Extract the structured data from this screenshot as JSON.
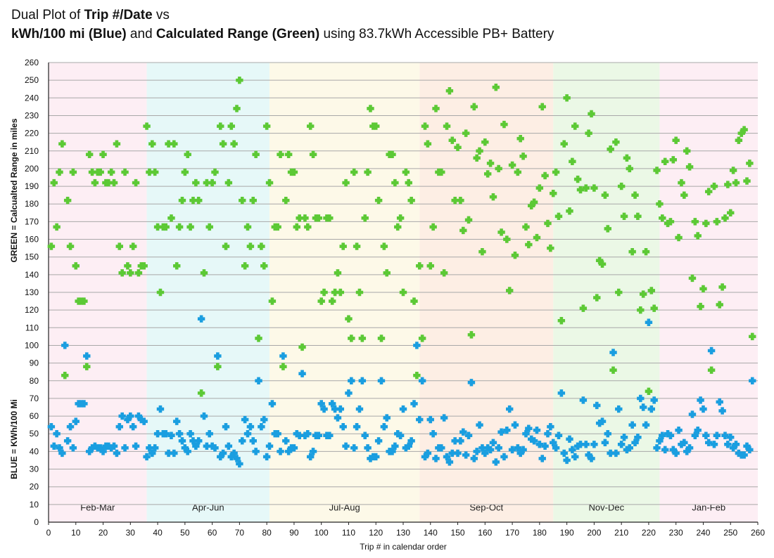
{
  "title": {
    "line1": [
      {
        "text": "Dual Plot of ",
        "bold": false
      },
      {
        "text": "Trip #/Date",
        "bold": true
      },
      {
        "text": " vs",
        "bold": false
      }
    ],
    "line2": [
      {
        "text": "kWh/100 mi (Blue)",
        "bold": true
      },
      {
        "text": " and ",
        "bold": false
      },
      {
        "text": "Calculated Range (Green)",
        "bold": true
      },
      {
        "text": " using 83.7kWh Accessible PB+ Battery",
        "bold": false
      }
    ]
  },
  "chart_data": {
    "type": "scatter",
    "xlabel": "Trip # in calendar order",
    "ylabel_green": "GREEN = Calcualted Range in miles",
    "ylabel_blue": "BLUE = KWh/100 Mi",
    "xlim": [
      0,
      260
    ],
    "ylim": [
      0,
      260
    ],
    "xticks": [
      0,
      10,
      20,
      30,
      40,
      50,
      60,
      70,
      80,
      90,
      100,
      110,
      120,
      130,
      140,
      150,
      160,
      170,
      180,
      190,
      200,
      210,
      220,
      230,
      240,
      250,
      260
    ],
    "yticks": [
      0,
      10,
      20,
      30,
      40,
      50,
      60,
      70,
      80,
      90,
      100,
      110,
      120,
      130,
      140,
      150,
      160,
      170,
      180,
      190,
      200,
      210,
      220,
      230,
      240,
      250,
      260
    ],
    "grid": "horizontal",
    "marker": "plus",
    "colors": {
      "green": "#5cc935",
      "blue": "#1a9ee0"
    },
    "bands": [
      {
        "label": "Feb-Mar",
        "start": 0,
        "end": 36,
        "color": "#fdeef4"
      },
      {
        "label": "Apr-Jun",
        "start": 36,
        "end": 81,
        "color": "#e6f8f8"
      },
      {
        "label": "Jul-Aug",
        "start": 81,
        "end": 136,
        "color": "#fdf9e8"
      },
      {
        "label": "Sep-Oct",
        "start": 136,
        "end": 185,
        "color": "#fdeee4"
      },
      {
        "label": "Nov-Dec",
        "start": 185,
        "end": 224,
        "color": "#ebf8e6"
      },
      {
        "label": "Jan-Feb",
        "start": 224,
        "end": 260,
        "color": "#fdeef4"
      }
    ],
    "series": [
      {
        "key": "green",
        "x": [
          1,
          2,
          3,
          4,
          5,
          6,
          7,
          8,
          9,
          10,
          11,
          12,
          13,
          14,
          15,
          16,
          17,
          18,
          19,
          20,
          21,
          22,
          23,
          24,
          25,
          26,
          27,
          28,
          29,
          30,
          31,
          32,
          33,
          34,
          35,
          36,
          37,
          38,
          39,
          40,
          41,
          42,
          43,
          44,
          45,
          46,
          47,
          48,
          49,
          50,
          51,
          52,
          53,
          54,
          55,
          56,
          57,
          58,
          59,
          60,
          61,
          62,
          63,
          64,
          65,
          66,
          67,
          68,
          69,
          70,
          71,
          72,
          73,
          74,
          75,
          76,
          77,
          78,
          79,
          80,
          81,
          82,
          83,
          84,
          85,
          86,
          87,
          88,
          89,
          90,
          91,
          92,
          93,
          94,
          95,
          96,
          97,
          98,
          99,
          100,
          101,
          102,
          103,
          104,
          105,
          106,
          107,
          108,
          109,
          110,
          111,
          112,
          113,
          114,
          115,
          116,
          117,
          118,
          119,
          120,
          121,
          122,
          123,
          124,
          125,
          126,
          127,
          128,
          129,
          130,
          131,
          132,
          133,
          134,
          135,
          136,
          137,
          138,
          139,
          140,
          141,
          142,
          143,
          144,
          145,
          146,
          147,
          148,
          149,
          150,
          151,
          152,
          153,
          154,
          155,
          156,
          157,
          158,
          159,
          160,
          161,
          162,
          163,
          164,
          165,
          166,
          167,
          168,
          169,
          170,
          171,
          172,
          173,
          174,
          175,
          176,
          177,
          178,
          179,
          180,
          181,
          182,
          183,
          184,
          185,
          186,
          187,
          188,
          189,
          190,
          191,
          192,
          193,
          194,
          195,
          196,
          197,
          198,
          199,
          200,
          201,
          202,
          203,
          204,
          205,
          206,
          207,
          208,
          209,
          210,
          211,
          212,
          213,
          214,
          215,
          216,
          217,
          218,
          219,
          220,
          221,
          222,
          223,
          224,
          225,
          226,
          227,
          228,
          229,
          230,
          231,
          232,
          233,
          234,
          235,
          236,
          237,
          238,
          239,
          240,
          241,
          242,
          243,
          244,
          245,
          246,
          247,
          248,
          249,
          250,
          251,
          252,
          253,
          254,
          255,
          256,
          257,
          258
        ],
        "y": [
          156,
          192,
          167,
          198,
          214,
          83,
          182,
          156,
          198,
          145,
          125,
          125,
          125,
          88,
          208,
          198,
          192,
          198,
          198,
          208,
          192,
          192,
          198,
          192,
          214,
          156,
          141,
          198,
          145,
          141,
          156,
          192,
          141,
          145,
          145,
          224,
          198,
          214,
          198,
          167,
          130,
          167,
          167,
          214,
          172,
          214,
          145,
          167,
          182,
          198,
          208,
          167,
          182,
          192,
          182,
          73,
          141,
          192,
          167,
          192,
          198,
          88,
          224,
          214,
          156,
          192,
          224,
          214,
          234,
          250,
          182,
          145,
          167,
          156,
          182,
          208,
          104,
          156,
          145,
          224,
          192,
          125,
          167,
          167,
          208,
          88,
          182,
          208,
          198,
          198,
          167,
          172,
          99,
          172,
          167,
          224,
          208,
          172,
          172,
          125,
          130,
          172,
          172,
          125,
          130,
          141,
          130,
          156,
          192,
          115,
          104,
          198,
          156,
          130,
          104,
          172,
          198,
          234,
          224,
          224,
          182,
          104,
          156,
          141,
          208,
          208,
          192,
          167,
          172,
          130,
          198,
          192,
          182,
          125,
          83,
          145,
          104,
          224,
          214,
          145,
          167,
          234,
          198,
          198,
          141,
          224,
          244,
          216,
          182,
          212,
          182,
          165,
          220,
          171,
          106,
          235,
          206,
          210,
          153,
          215,
          197,
          203,
          184,
          246,
          200,
          164,
          225,
          160,
          131,
          202,
          151,
          198,
          217,
          207,
          167,
          157,
          179,
          181,
          161,
          189,
          235,
          196,
          169,
          155,
          186,
          198,
          173,
          114,
          214,
          240,
          176,
          204,
          224,
          194,
          188,
          121,
          189,
          220,
          231,
          189,
          127,
          148,
          146,
          185,
          166,
          211,
          86,
          215,
          130,
          190,
          173,
          206,
          200,
          153,
          185,
          173,
          120,
          129,
          153,
          74,
          131,
          121,
          199,
          180,
          172,
          204,
          169,
          170,
          205,
          216,
          161,
          192,
          185,
          210,
          201,
          138,
          170,
          162,
          122,
          132,
          169,
          187,
          86,
          190,
          170,
          123,
          133,
          172,
          191,
          175,
          199,
          192,
          216,
          220,
          222,
          193,
          203,
          105
        ]
      },
      {
        "key": "blue",
        "x": [
          1,
          2,
          3,
          4,
          5,
          6,
          7,
          8,
          9,
          10,
          11,
          12,
          13,
          14,
          15,
          16,
          17,
          18,
          19,
          20,
          21,
          22,
          23,
          24,
          25,
          26,
          27,
          28,
          29,
          30,
          31,
          32,
          33,
          34,
          35,
          36,
          37,
          38,
          39,
          40,
          41,
          42,
          43,
          44,
          45,
          46,
          47,
          48,
          49,
          50,
          51,
          52,
          53,
          54,
          55,
          56,
          57,
          58,
          59,
          60,
          61,
          62,
          63,
          64,
          65,
          66,
          67,
          68,
          69,
          70,
          71,
          72,
          73,
          74,
          75,
          76,
          77,
          78,
          79,
          80,
          81,
          82,
          83,
          84,
          85,
          86,
          87,
          88,
          89,
          90,
          91,
          92,
          93,
          94,
          95,
          96,
          97,
          98,
          99,
          100,
          101,
          102,
          103,
          104,
          105,
          106,
          107,
          108,
          109,
          110,
          111,
          112,
          113,
          114,
          115,
          116,
          117,
          118,
          119,
          120,
          121,
          122,
          123,
          124,
          125,
          126,
          127,
          128,
          129,
          130,
          131,
          132,
          133,
          134,
          135,
          136,
          137,
          138,
          139,
          140,
          141,
          142,
          143,
          144,
          145,
          146,
          147,
          148,
          149,
          150,
          151,
          152,
          153,
          154,
          155,
          156,
          157,
          158,
          159,
          160,
          161,
          162,
          163,
          164,
          165,
          166,
          167,
          168,
          169,
          170,
          171,
          172,
          173,
          174,
          175,
          176,
          177,
          178,
          179,
          180,
          181,
          182,
          183,
          184,
          185,
          186,
          187,
          188,
          189,
          190,
          191,
          192,
          193,
          194,
          195,
          196,
          197,
          198,
          199,
          200,
          201,
          202,
          203,
          204,
          205,
          206,
          207,
          208,
          209,
          210,
          211,
          212,
          213,
          214,
          215,
          216,
          217,
          218,
          219,
          220,
          221,
          222,
          223,
          224,
          225,
          226,
          227,
          228,
          229,
          230,
          231,
          232,
          233,
          234,
          235,
          236,
          237,
          238,
          239,
          240,
          241,
          242,
          243,
          244,
          245,
          246,
          247,
          248,
          249,
          250,
          251,
          252,
          253,
          254,
          255,
          256,
          257,
          258
        ],
        "y": [
          54,
          43,
          50,
          42,
          39,
          100,
          46,
          54,
          42,
          57,
          67,
          67,
          67,
          94,
          40,
          42,
          43,
          42,
          42,
          40,
          43,
          43,
          42,
          43,
          39,
          54,
          60,
          42,
          58,
          60,
          54,
          43,
          60,
          58,
          57,
          37,
          42,
          39,
          42,
          50,
          64,
          50,
          50,
          39,
          49,
          39,
          57,
          50,
          46,
          42,
          40,
          50,
          46,
          43,
          46,
          115,
          60,
          43,
          50,
          43,
          42,
          94,
          37,
          39,
          54,
          43,
          37,
          39,
          36,
          33,
          46,
          58,
          50,
          54,
          46,
          40,
          80,
          54,
          58,
          37,
          43,
          67,
          50,
          50,
          40,
          94,
          46,
          40,
          42,
          42,
          50,
          49,
          84,
          49,
          50,
          37,
          40,
          49,
          49,
          67,
          64,
          49,
          49,
          67,
          64,
          59,
          64,
          54,
          43,
          73,
          80,
          42,
          54,
          64,
          80,
          49,
          42,
          36,
          37,
          37,
          46,
          80,
          54,
          59,
          40,
          40,
          43,
          50,
          49,
          64,
          42,
          43,
          46,
          67,
          100,
          58,
          80,
          37,
          39,
          58,
          50,
          36,
          42,
          42,
          59,
          37,
          34,
          39,
          46,
          39,
          46,
          51,
          38,
          49,
          79,
          36,
          40,
          55,
          42,
          39,
          42,
          41,
          45,
          34,
          42,
          51,
          37,
          52,
          64,
          41,
          55,
          42,
          39,
          41,
          50,
          53,
          47,
          46,
          52,
          44,
          36,
          43,
          50,
          54,
          45,
          42,
          49,
          73,
          39,
          35,
          47,
          41,
          37,
          43,
          44,
          69,
          44,
          38,
          36,
          44,
          66,
          56,
          57,
          45,
          50,
          39,
          96,
          39,
          64,
          44,
          48,
          41,
          42,
          55,
          45,
          48,
          70,
          65,
          55,
          113,
          64,
          69,
          42,
          46,
          49,
          41,
          50,
          49,
          41,
          39,
          52,
          44,
          45,
          40,
          42,
          61,
          49,
          52,
          69,
          64,
          49,
          45,
          97,
          44,
          49,
          68,
          63,
          49,
          44,
          48,
          42,
          44,
          39,
          38,
          38,
          43,
          41,
          80
        ]
      }
    ]
  }
}
